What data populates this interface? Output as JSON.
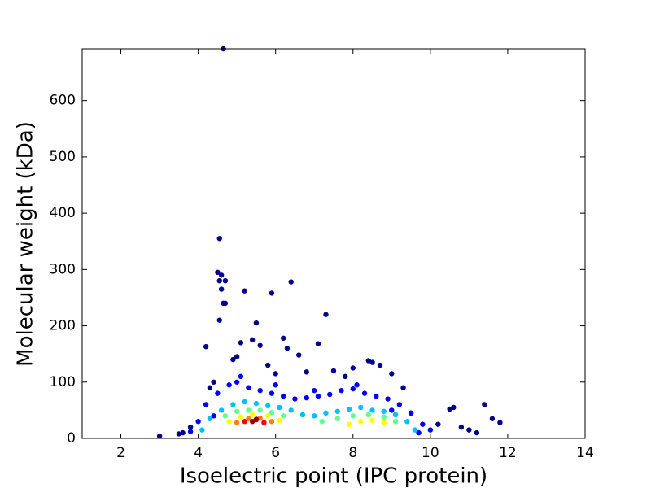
{
  "chart_data": {
    "type": "scatter",
    "xlabel": "Isoelectric point (IPC protein)",
    "ylabel": "Molecular weight (kDa)",
    "xlim": [
      1,
      14
    ],
    "xticks": [
      2,
      4,
      6,
      8,
      10,
      12,
      14
    ],
    "ylim": [
      0,
      692
    ],
    "yticks": [
      0,
      100,
      200,
      300,
      400,
      500,
      600
    ],
    "grid": false,
    "series": [
      {
        "color": "#00008f",
        "x": [
          4.65,
          4.55,
          4.5,
          4.6,
          4.7,
          4.55,
          4.6,
          4.65,
          4.7,
          4.55,
          5.2,
          5.9,
          6.4,
          7.3,
          5.5,
          6.2,
          4.2,
          7.1,
          5.1,
          5.4,
          5.6,
          6.3,
          6.6,
          8.4,
          8.5,
          8.7,
          9.0,
          9.3,
          10.5,
          10.6,
          11.4,
          11.6,
          11.8,
          3.0,
          3.5,
          3.8,
          10.8,
          11.0,
          11.2,
          10.2,
          9.5,
          7.8,
          7.5,
          8.0,
          6.8,
          6.0,
          5.8,
          4.9,
          5.0,
          4.4,
          4.3,
          3.6
        ],
        "values": [
          692,
          355,
          295,
          290,
          280,
          280,
          265,
          240,
          240,
          210,
          262,
          258,
          278,
          220,
          205,
          178,
          163,
          168,
          170,
          175,
          165,
          160,
          148,
          138,
          135,
          130,
          115,
          90,
          52,
          55,
          60,
          35,
          28,
          4,
          8,
          20,
          20,
          15,
          10,
          25,
          45,
          110,
          120,
          125,
          118,
          115,
          130,
          140,
          145,
          100,
          90,
          10
        ]
      },
      {
        "color": "#0000ff",
        "x": [
          4.2,
          4.5,
          4.8,
          5.0,
          5.3,
          5.6,
          5.9,
          6.2,
          6.5,
          6.8,
          7.1,
          7.4,
          7.7,
          8.0,
          8.3,
          8.6,
          8.9,
          9.2,
          9.5,
          9.8,
          4.4,
          5.1,
          6.0,
          7.0,
          8.1,
          9.0,
          10.0,
          4.0,
          3.8,
          9.7
        ],
        "values": [
          60,
          80,
          95,
          100,
          90,
          85,
          80,
          75,
          70,
          72,
          75,
          78,
          85,
          88,
          80,
          75,
          70,
          60,
          45,
          25,
          40,
          110,
          95,
          85,
          95,
          50,
          15,
          30,
          12,
          10
        ]
      },
      {
        "color": "#00c0ff",
        "x": [
          4.3,
          4.6,
          4.9,
          5.2,
          5.5,
          5.8,
          6.1,
          6.4,
          6.7,
          7.0,
          7.3,
          7.6,
          7.9,
          8.2,
          8.5,
          8.8,
          9.1,
          9.4,
          4.1,
          9.6
        ],
        "values": [
          35,
          50,
          60,
          65,
          62,
          58,
          55,
          50,
          42,
          40,
          45,
          48,
          52,
          55,
          50,
          48,
          42,
          30,
          15,
          15
        ]
      },
      {
        "color": "#60ff90",
        "x": [
          4.7,
          5.0,
          5.3,
          5.6,
          5.9,
          6.2,
          7.2,
          7.6,
          8.0,
          8.4,
          8.8,
          9.1
        ],
        "values": [
          40,
          48,
          50,
          50,
          46,
          40,
          30,
          35,
          40,
          42,
          38,
          30
        ]
      },
      {
        "color": "#ffff00",
        "x": [
          4.8,
          5.1,
          5.4,
          5.8,
          6.1,
          7.9,
          8.2,
          8.5,
          8.8
        ],
        "values": [
          30,
          38,
          42,
          40,
          32,
          25,
          30,
          32,
          28
        ]
      },
      {
        "color": "#ff8000",
        "x": [
          5.0,
          5.3,
          5.6,
          5.9
        ],
        "values": [
          28,
          35,
          36,
          30
        ]
      },
      {
        "color": "#ff0000",
        "x": [
          5.2,
          5.5,
          5.7
        ],
        "values": [
          30,
          33,
          28
        ]
      },
      {
        "color": "#990000",
        "x": [
          5.4,
          5.5
        ],
        "values": [
          30,
          34
        ]
      }
    ]
  }
}
